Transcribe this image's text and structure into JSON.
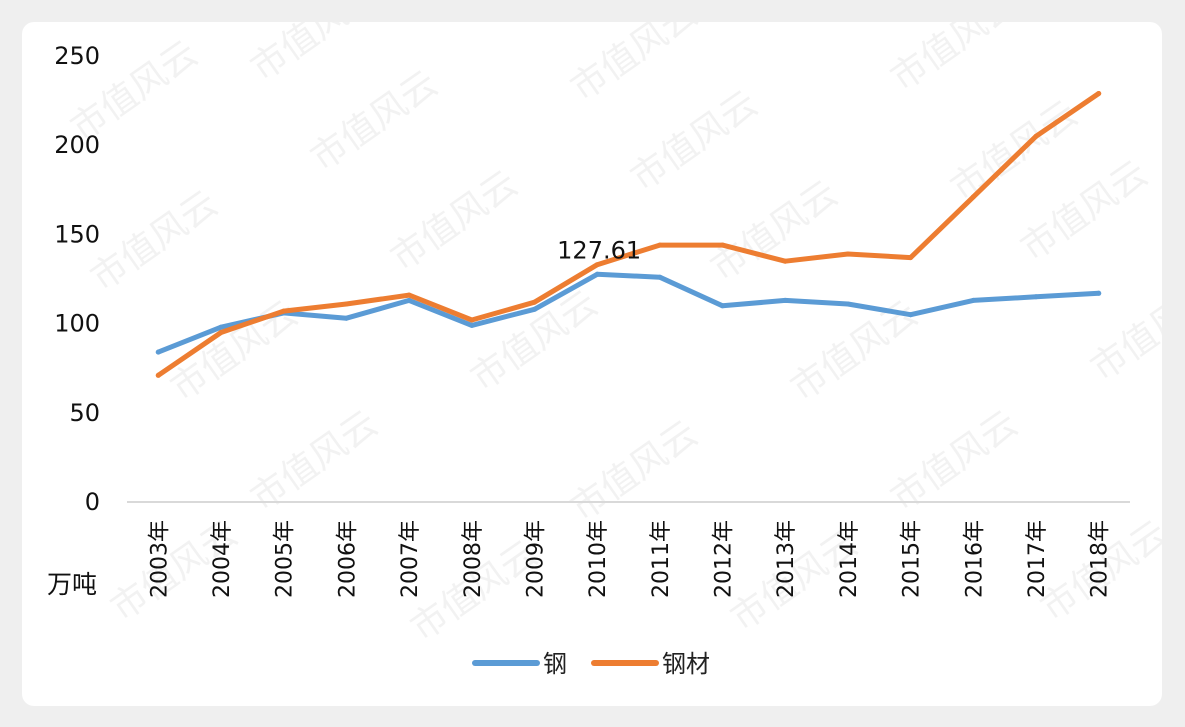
{
  "watermark": "市值风云",
  "colors": {
    "steel": "#5B9BD5",
    "steel_products": "#ED7D31",
    "axis": "#d9d9d9"
  },
  "chart_data": {
    "type": "line",
    "title": "",
    "ylabel": "万吨",
    "xlabel": "",
    "ylim": [
      0,
      250
    ],
    "yticks": [
      0,
      50,
      100,
      150,
      200,
      250
    ],
    "categories": [
      "2003年",
      "2004年",
      "2005年",
      "2006年",
      "2007年",
      "2008年",
      "2009年",
      "2010年",
      "2011年",
      "2012年",
      "2013年",
      "2014年",
      "2015年",
      "2016年",
      "2017年",
      "2018年"
    ],
    "series": [
      {
        "name": "钢",
        "color": "#5B9BD5",
        "values": [
          84,
          98,
          106,
          103,
          113,
          99,
          108,
          127.61,
          126,
          110,
          113,
          111,
          105,
          113,
          115,
          117
        ]
      },
      {
        "name": "钢材",
        "color": "#ED7D31",
        "values": [
          71,
          95,
          107,
          111,
          116,
          102,
          112,
          133,
          144,
          144,
          135,
          139,
          137,
          171,
          205,
          229
        ]
      }
    ],
    "annotations": [
      {
        "series": 0,
        "index": 7,
        "text": "127.61"
      }
    ],
    "legend": "bottom",
    "grid": false
  }
}
